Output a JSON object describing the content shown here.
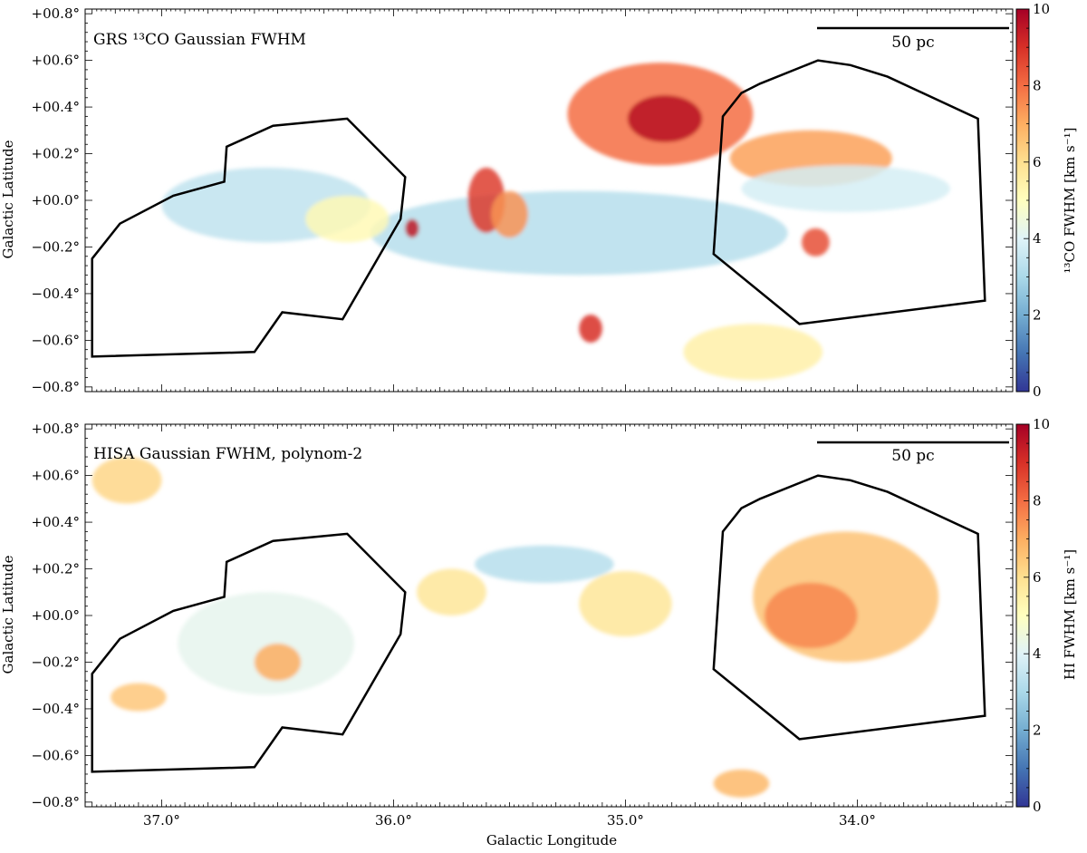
{
  "figure": {
    "xlabel": "Galactic Longitude",
    "colors": {
      "low": "#313695",
      "mid": "#ffffbf",
      "high": "#a50026",
      "contour": "#000000"
    }
  },
  "chart_data": [
    {
      "type": "heatmap",
      "title": "GRS ¹³CO Gaussian FWHM",
      "xlabel": "",
      "ylabel": "Galactic Latitude",
      "xlim": [
        37.33,
        33.33
      ],
      "ylim": [
        -0.82,
        0.82
      ],
      "x_ticks": [
        37.0,
        36.0,
        35.0,
        34.0
      ],
      "x_tick_labels": [
        "",
        "",
        "",
        ""
      ],
      "y_ticks": [
        0.8,
        0.6,
        0.4,
        0.2,
        0.0,
        -0.2,
        -0.4,
        -0.6,
        -0.8
      ],
      "y_tick_labels": [
        "+00.8°",
        "+00.6°",
        "+00.4°",
        "+00.2°",
        "+00.0°",
        "−00.2°",
        "−00.4°",
        "−00.6°",
        "−00.8°"
      ],
      "colorbar": {
        "label": "¹³CO FWHM [km s⁻¹]",
        "range": [
          0,
          10
        ],
        "ticks": [
          0,
          2,
          4,
          6,
          8,
          10
        ],
        "tick_labels": [
          "0",
          "2",
          "4",
          "6",
          "8",
          "10"
        ],
        "colormap": "RdYlBu_r"
      },
      "scale_bar": {
        "label": "50 pc"
      },
      "regions": [
        {
          "name": "left polygon",
          "l": [
            37.3,
            37.18,
            36.95,
            36.73,
            36.72,
            36.52,
            36.2,
            35.95,
            35.97,
            36.22,
            36.48,
            36.6,
            37.3
          ],
          "b": [
            -0.25,
            -0.1,
            0.02,
            0.08,
            0.23,
            0.32,
            0.35,
            0.1,
            -0.08,
            -0.51,
            -0.48,
            -0.65,
            -0.67
          ]
        },
        {
          "name": "right polygon",
          "l": [
            34.58,
            34.5,
            34.42,
            34.17,
            34.03,
            33.87,
            33.48,
            33.45,
            34.25,
            34.62,
            34.58
          ],
          "b": [
            0.36,
            0.46,
            0.5,
            0.6,
            0.58,
            0.53,
            0.35,
            -0.43,
            -0.53,
            -0.23,
            0.36
          ]
        }
      ],
      "emission_blobs": [
        {
          "l": 35.2,
          "b": -0.14,
          "dl": 0.9,
          "db": 0.18,
          "fwhm": 3.2
        },
        {
          "l": 34.85,
          "b": 0.37,
          "dl": 0.4,
          "db": 0.22,
          "fwhm": 8.0
        },
        {
          "l": 34.83,
          "b": 0.35,
          "dl": 0.16,
          "db": 0.1,
          "fwhm": 9.6
        },
        {
          "l": 34.2,
          "b": 0.18,
          "dl": 0.35,
          "db": 0.12,
          "fwhm": 7.2
        },
        {
          "l": 34.05,
          "b": 0.05,
          "dl": 0.45,
          "db": 0.1,
          "fwhm": 3.8
        },
        {
          "l": 35.6,
          "b": 0.0,
          "dl": 0.08,
          "db": 0.14,
          "fwhm": 8.8
        },
        {
          "l": 35.5,
          "b": -0.06,
          "dl": 0.08,
          "db": 0.1,
          "fwhm": 7.4
        },
        {
          "l": 36.55,
          "b": -0.02,
          "dl": 0.45,
          "db": 0.16,
          "fwhm": 3.4
        },
        {
          "l": 36.2,
          "b": -0.08,
          "dl": 0.18,
          "db": 0.1,
          "fwhm": 5.2
        },
        {
          "l": 34.45,
          "b": -0.65,
          "dl": 0.3,
          "db": 0.12,
          "fwhm": 5.5
        },
        {
          "l": 35.15,
          "b": -0.55,
          "dl": 0.05,
          "db": 0.06,
          "fwhm": 9.0
        },
        {
          "l": 35.92,
          "b": -0.12,
          "dl": 0.03,
          "db": 0.04,
          "fwhm": 9.5
        },
        {
          "l": 34.18,
          "b": -0.18,
          "dl": 0.06,
          "db": 0.06,
          "fwhm": 8.5
        }
      ]
    },
    {
      "type": "heatmap",
      "title": "HISA Gaussian FWHM, polynom-2",
      "xlabel": "Galactic Longitude",
      "ylabel": "Galactic Latitude",
      "xlim": [
        37.33,
        33.33
      ],
      "ylim": [
        -0.82,
        0.82
      ],
      "x_ticks": [
        37.0,
        36.0,
        35.0,
        34.0
      ],
      "x_tick_labels": [
        "37.0°",
        "36.0°",
        "35.0°",
        "34.0°"
      ],
      "y_ticks": [
        0.8,
        0.6,
        0.4,
        0.2,
        0.0,
        -0.2,
        -0.4,
        -0.6,
        -0.8
      ],
      "y_tick_labels": [
        "+00.8°",
        "+00.6°",
        "+00.4°",
        "+00.2°",
        "+00.0°",
        "−00.2°",
        "−00.4°",
        "−00.6°",
        "−00.8°"
      ],
      "colorbar": {
        "label": "HI FWHM [km s⁻¹]",
        "range": [
          0,
          10
        ],
        "ticks": [
          0,
          2,
          4,
          6,
          8,
          10
        ],
        "tick_labels": [
          "0",
          "2",
          "4",
          "6",
          "8",
          "10"
        ],
        "colormap": "RdYlBu_r"
      },
      "scale_bar": {
        "label": "50 pc"
      },
      "regions": [
        {
          "name": "left polygon",
          "l": [
            37.3,
            37.18,
            36.95,
            36.73,
            36.72,
            36.52,
            36.2,
            35.95,
            35.97,
            36.22,
            36.48,
            36.6,
            37.3
          ],
          "b": [
            -0.25,
            -0.1,
            0.02,
            0.08,
            0.23,
            0.32,
            0.35,
            0.1,
            -0.08,
            -0.51,
            -0.48,
            -0.65,
            -0.67
          ]
        },
        {
          "name": "right polygon",
          "l": [
            34.58,
            34.5,
            34.42,
            34.17,
            34.03,
            33.87,
            33.48,
            33.45,
            34.25,
            34.62,
            34.58
          ],
          "b": [
            0.36,
            0.46,
            0.5,
            0.6,
            0.58,
            0.53,
            0.35,
            -0.43,
            -0.53,
            -0.23,
            0.36
          ]
        }
      ],
      "emission_blobs": [
        {
          "l": 34.05,
          "b": 0.08,
          "dl": 0.4,
          "db": 0.28,
          "fwhm": 6.6
        },
        {
          "l": 34.2,
          "b": 0.0,
          "dl": 0.2,
          "db": 0.14,
          "fwhm": 7.6
        },
        {
          "l": 36.55,
          "b": -0.12,
          "dl": 0.38,
          "db": 0.22,
          "fwhm": 4.2
        },
        {
          "l": 36.5,
          "b": -0.2,
          "dl": 0.1,
          "db": 0.08,
          "fwhm": 7.0
        },
        {
          "l": 35.35,
          "b": 0.22,
          "dl": 0.3,
          "db": 0.08,
          "fwhm": 3.2
        },
        {
          "l": 35.0,
          "b": 0.05,
          "dl": 0.2,
          "db": 0.14,
          "fwhm": 5.8
        },
        {
          "l": 37.15,
          "b": 0.58,
          "dl": 0.15,
          "db": 0.1,
          "fwhm": 6.2
        },
        {
          "l": 34.5,
          "b": -0.72,
          "dl": 0.12,
          "db": 0.06,
          "fwhm": 6.8
        },
        {
          "l": 37.1,
          "b": -0.35,
          "dl": 0.12,
          "db": 0.06,
          "fwhm": 6.5
        },
        {
          "l": 35.75,
          "b": 0.1,
          "dl": 0.15,
          "db": 0.1,
          "fwhm": 5.8
        }
      ]
    }
  ]
}
